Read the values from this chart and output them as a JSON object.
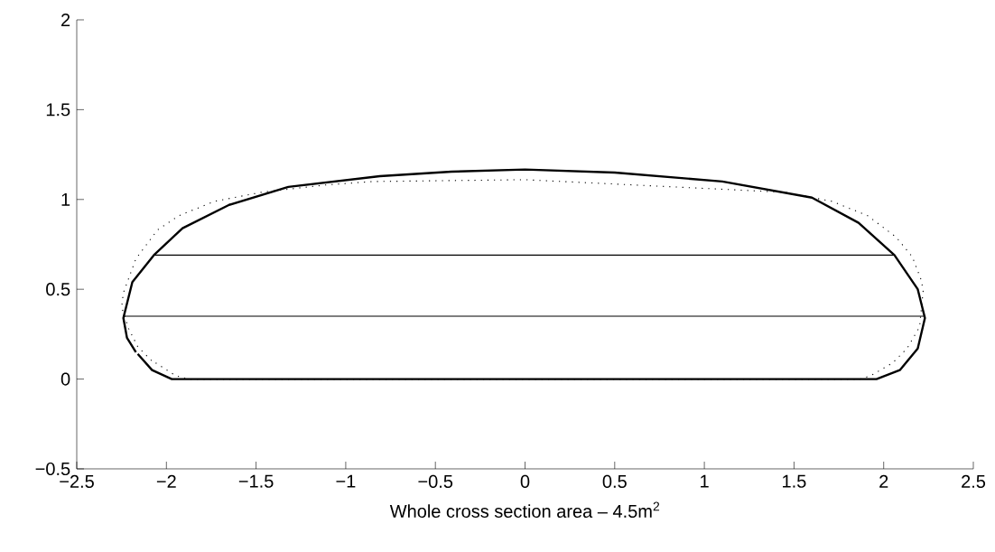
{
  "chart_data": {
    "type": "line",
    "xlabel": "Whole cross section area – 4.5m$^{2}$",
    "xlim": [
      -2.5,
      2.5
    ],
    "ylim": [
      -0.5,
      2
    ],
    "xticks": [
      {
        "value": -2.5,
        "label": "−2.5"
      },
      {
        "value": -2,
        "label": "−2"
      },
      {
        "value": -1.5,
        "label": "−1.5"
      },
      {
        "value": -1,
        "label": "−1"
      },
      {
        "value": -0.5,
        "label": "−0.5"
      },
      0,
      0.5,
      1,
      1.5,
      2,
      2.5
    ],
    "yticks": [
      {
        "value": -0.5,
        "label": "−0.5"
      },
      0,
      0.5,
      1,
      1.5,
      2
    ],
    "grid": false,
    "marker": "none",
    "series": [
      {
        "color": "#000000",
        "line_style": "solid",
        "x": [
          -2.16,
          -2.08,
          -1.97,
          1.96,
          2.09,
          2.19,
          2.23,
          2.19,
          2.06,
          1.86,
          1.6,
          1.1,
          0.5,
          0,
          -0.41,
          -0.81,
          -1.32,
          -1.65,
          -1.91,
          -2.07,
          -2.19,
          -2.24,
          -2.22,
          -2.17
        ],
        "values": [
          0.14,
          0.05,
          0,
          0,
          0.05,
          0.17,
          0.34,
          0.5,
          0.69,
          0.87,
          1.01,
          1.1,
          1.15,
          1.167,
          1.155,
          1.13,
          1.07,
          0.97,
          0.84,
          0.69,
          0.54,
          0.34,
          0.23,
          0.15
        ]
      },
      {
        "color": "#000000",
        "line_style": "dotted",
        "x": [
          -2.06,
          -1.95,
          -1.88,
          1.87,
          1.93,
          2.05,
          2.13,
          2.2,
          2.22,
          2.21,
          2.16,
          2.07,
          1.91,
          1.71,
          1.45,
          0,
          -0.85,
          -1.12,
          -1.47,
          -1.73,
          -1.93,
          -2.05,
          -2.17,
          -2.24,
          -2.25,
          -2.21,
          -2.16,
          -2.08
        ],
        "values": [
          0.09,
          0.02,
          0,
          0,
          0.02,
          0.09,
          0.17,
          0.29,
          0.49,
          0.55,
          0.68,
          0.79,
          0.91,
          0.99,
          1.04,
          1.11,
          1.1,
          1.08,
          1.04,
          0.99,
          0.91,
          0.83,
          0.67,
          0.48,
          0.4,
          0.28,
          0.18,
          0.1
        ]
      },
      {
        "color": "#000000",
        "line_style": "solid",
        "x": [
          -2.24,
          2.23
        ],
        "values": [
          0.35,
          0.35
        ]
      },
      {
        "color": "#000000",
        "line_style": "solid",
        "x": [
          -2.07,
          2.06
        ],
        "values": [
          0.69,
          0.69
        ]
      }
    ]
  }
}
